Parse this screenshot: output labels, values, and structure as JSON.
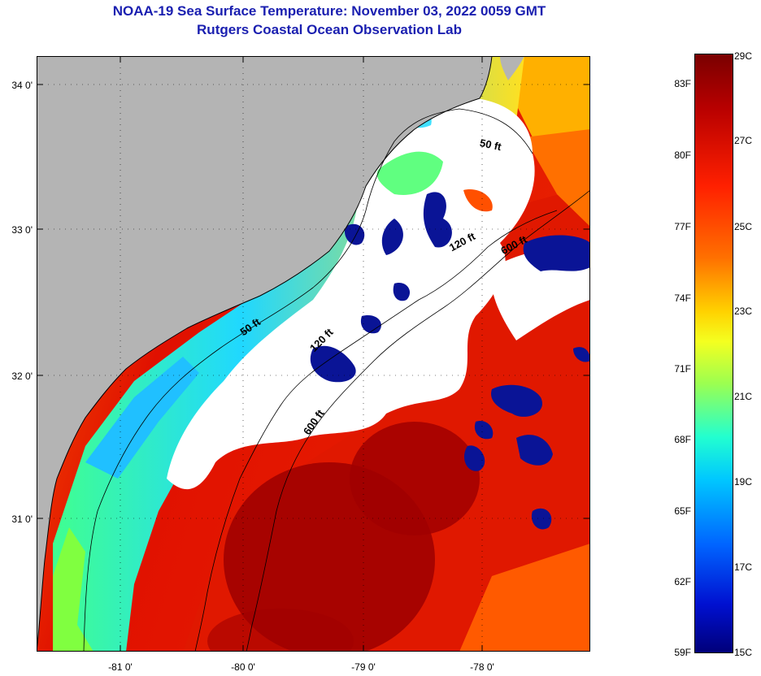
{
  "title": {
    "line1": "NOAA-19 Sea Surface Temperature:  November 03, 2022 0059 GMT",
    "line2": "Rutgers Coastal Ocean Observation Lab"
  },
  "map": {
    "lat_labels": [
      "34 0'",
      "33 0'",
      "32 0'",
      "31 0'"
    ],
    "lon_labels": [
      "-81 0'",
      "-80 0'",
      "-79 0'",
      "-78 0'"
    ],
    "isobath_labels": [
      "50 ft",
      "120 ft",
      "600 ft",
      "50 ft",
      "120 ft",
      "600 ft"
    ],
    "colors": {
      "land": "#b4b4b4",
      "cloud": "#ffffff",
      "coast": "#000000"
    }
  },
  "colorbar": {
    "fahrenheit": [
      "83F",
      "80F",
      "77F",
      "74F",
      "71F",
      "68F",
      "65F",
      "62F",
      "59F"
    ],
    "celsius": [
      "29C",
      "27C",
      "25C",
      "23C",
      "21C",
      "19C",
      "17C",
      "15C"
    ]
  }
}
